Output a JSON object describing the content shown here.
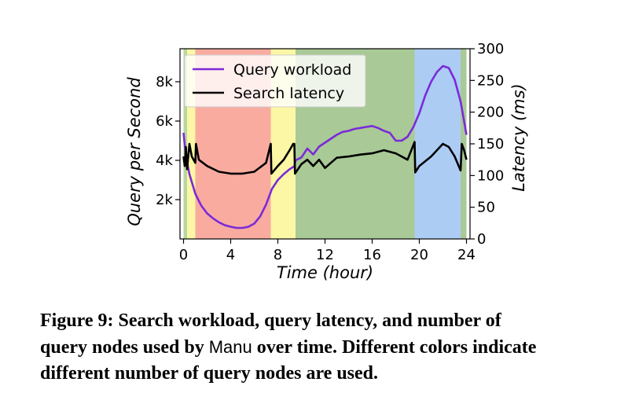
{
  "chart_data": {
    "type": "line",
    "xlabel": "Time (hour)",
    "ylabel_left": "Query per Second",
    "ylabel_right": "Latency (ms)",
    "xlim": [
      -0.3,
      24.3
    ],
    "ylim_left": [
      0,
      9680
    ],
    "ylim_right": [
      0,
      300
    ],
    "x_ticks": [
      0,
      4,
      8,
      12,
      16,
      20,
      24
    ],
    "x_tick_labels": [
      "0",
      "4",
      "8",
      "12",
      "16",
      "20",
      "24"
    ],
    "y_left_ticks": [
      2000,
      4000,
      6000,
      8000
    ],
    "y_left_tick_labels": [
      "2k",
      "4k",
      "6k",
      "8k"
    ],
    "y_right_ticks": [
      0,
      50,
      100,
      150,
      200,
      250,
      300
    ],
    "y_right_tick_labels": [
      "0",
      "50",
      "100",
      "150",
      "200",
      "250",
      "300"
    ],
    "legend": {
      "position": "top-left",
      "entries": [
        "Query workload",
        "Search latency"
      ]
    },
    "background_bands": [
      {
        "x0": 0.0,
        "x1": 0.3,
        "color": "#b9d6a0"
      },
      {
        "x0": 0.3,
        "x1": 1.0,
        "color": "#fbf7a4"
      },
      {
        "x0": 1.0,
        "x1": 7.4,
        "color": "#f9aba0"
      },
      {
        "x0": 7.4,
        "x1": 9.5,
        "color": "#fbf7a4"
      },
      {
        "x0": 9.5,
        "x1": 19.6,
        "color": "#a9c996"
      },
      {
        "x0": 19.6,
        "x1": 23.5,
        "color": "#acccf4"
      },
      {
        "x0": 23.5,
        "x1": 24.0,
        "color": "#a9c996"
      }
    ],
    "series": [
      {
        "name": "Query workload",
        "axis": "left",
        "color": "#7b2ad8",
        "points": [
          [
            0,
            5400
          ],
          [
            0.2,
            4200
          ],
          [
            0.5,
            3300
          ],
          [
            1,
            2300
          ],
          [
            1.5,
            1700
          ],
          [
            2,
            1300
          ],
          [
            2.5,
            1050
          ],
          [
            3,
            850
          ],
          [
            3.5,
            700
          ],
          [
            4,
            620
          ],
          [
            4.5,
            560
          ],
          [
            5,
            560
          ],
          [
            5.5,
            620
          ],
          [
            6,
            780
          ],
          [
            6.5,
            1150
          ],
          [
            7,
            1750
          ],
          [
            7.5,
            2550
          ],
          [
            8,
            3000
          ],
          [
            8.5,
            3300
          ],
          [
            9,
            3550
          ],
          [
            9.4,
            3700
          ],
          [
            9.5,
            4000
          ],
          [
            10,
            4150
          ],
          [
            10.5,
            4600
          ],
          [
            11,
            4300
          ],
          [
            11.5,
            4700
          ],
          [
            12,
            4900
          ],
          [
            12.5,
            5100
          ],
          [
            13,
            5300
          ],
          [
            13.5,
            5450
          ],
          [
            14,
            5500
          ],
          [
            14.5,
            5600
          ],
          [
            15,
            5650
          ],
          [
            15.5,
            5700
          ],
          [
            16,
            5750
          ],
          [
            16.5,
            5650
          ],
          [
            17,
            5500
          ],
          [
            17.5,
            5400
          ],
          [
            18,
            5000
          ],
          [
            18.5,
            5000
          ],
          [
            19,
            5200
          ],
          [
            19.5,
            5700
          ],
          [
            20,
            6400
          ],
          [
            20.5,
            7300
          ],
          [
            21,
            8000
          ],
          [
            21.5,
            8500
          ],
          [
            22,
            8800
          ],
          [
            22.5,
            8700
          ],
          [
            23,
            8100
          ],
          [
            23.5,
            7000
          ],
          [
            24,
            5300
          ]
        ]
      },
      {
        "name": "Search latency",
        "axis": "right",
        "color": "#000000",
        "points": [
          [
            0,
            130
          ],
          [
            0.1,
            115
          ],
          [
            0.2,
            145
          ],
          [
            0.3,
            110
          ],
          [
            0.5,
            150
          ],
          [
            0.7,
            130
          ],
          [
            1,
            120
          ],
          [
            1.05,
            150
          ],
          [
            1.3,
            125
          ],
          [
            2,
            115
          ],
          [
            3,
            106
          ],
          [
            4,
            103
          ],
          [
            5,
            103
          ],
          [
            6,
            106
          ],
          [
            7,
            120
          ],
          [
            7.4,
            150
          ],
          [
            7.45,
            103
          ],
          [
            8,
            115
          ],
          [
            8.5,
            125
          ],
          [
            9,
            140
          ],
          [
            9.3,
            150
          ],
          [
            9.4,
            150
          ],
          [
            9.45,
            103
          ],
          [
            10,
            118
          ],
          [
            10.5,
            125
          ],
          [
            11,
            115
          ],
          [
            11.5,
            125
          ],
          [
            12,
            112
          ],
          [
            12.5,
            120
          ],
          [
            13,
            128
          ],
          [
            14,
            130
          ],
          [
            15,
            133
          ],
          [
            16,
            135
          ],
          [
            17,
            140
          ],
          [
            18,
            135
          ],
          [
            19,
            125
          ],
          [
            19.6,
            153
          ],
          [
            19.65,
            105
          ],
          [
            20,
            115
          ],
          [
            21,
            130
          ],
          [
            22,
            150
          ],
          [
            22.5,
            145
          ],
          [
            23,
            130
          ],
          [
            23.5,
            108
          ],
          [
            23.6,
            150
          ],
          [
            23.8,
            140
          ],
          [
            24,
            125
          ]
        ]
      }
    ]
  },
  "caption": {
    "line1": "Figure 9: Search workload, query latency, and number of",
    "line2_pre": "query nodes used by ",
    "line2_name": "Manu",
    "line2_post": " over time. Different colors indicate",
    "line3": "different number of query nodes are used."
  }
}
